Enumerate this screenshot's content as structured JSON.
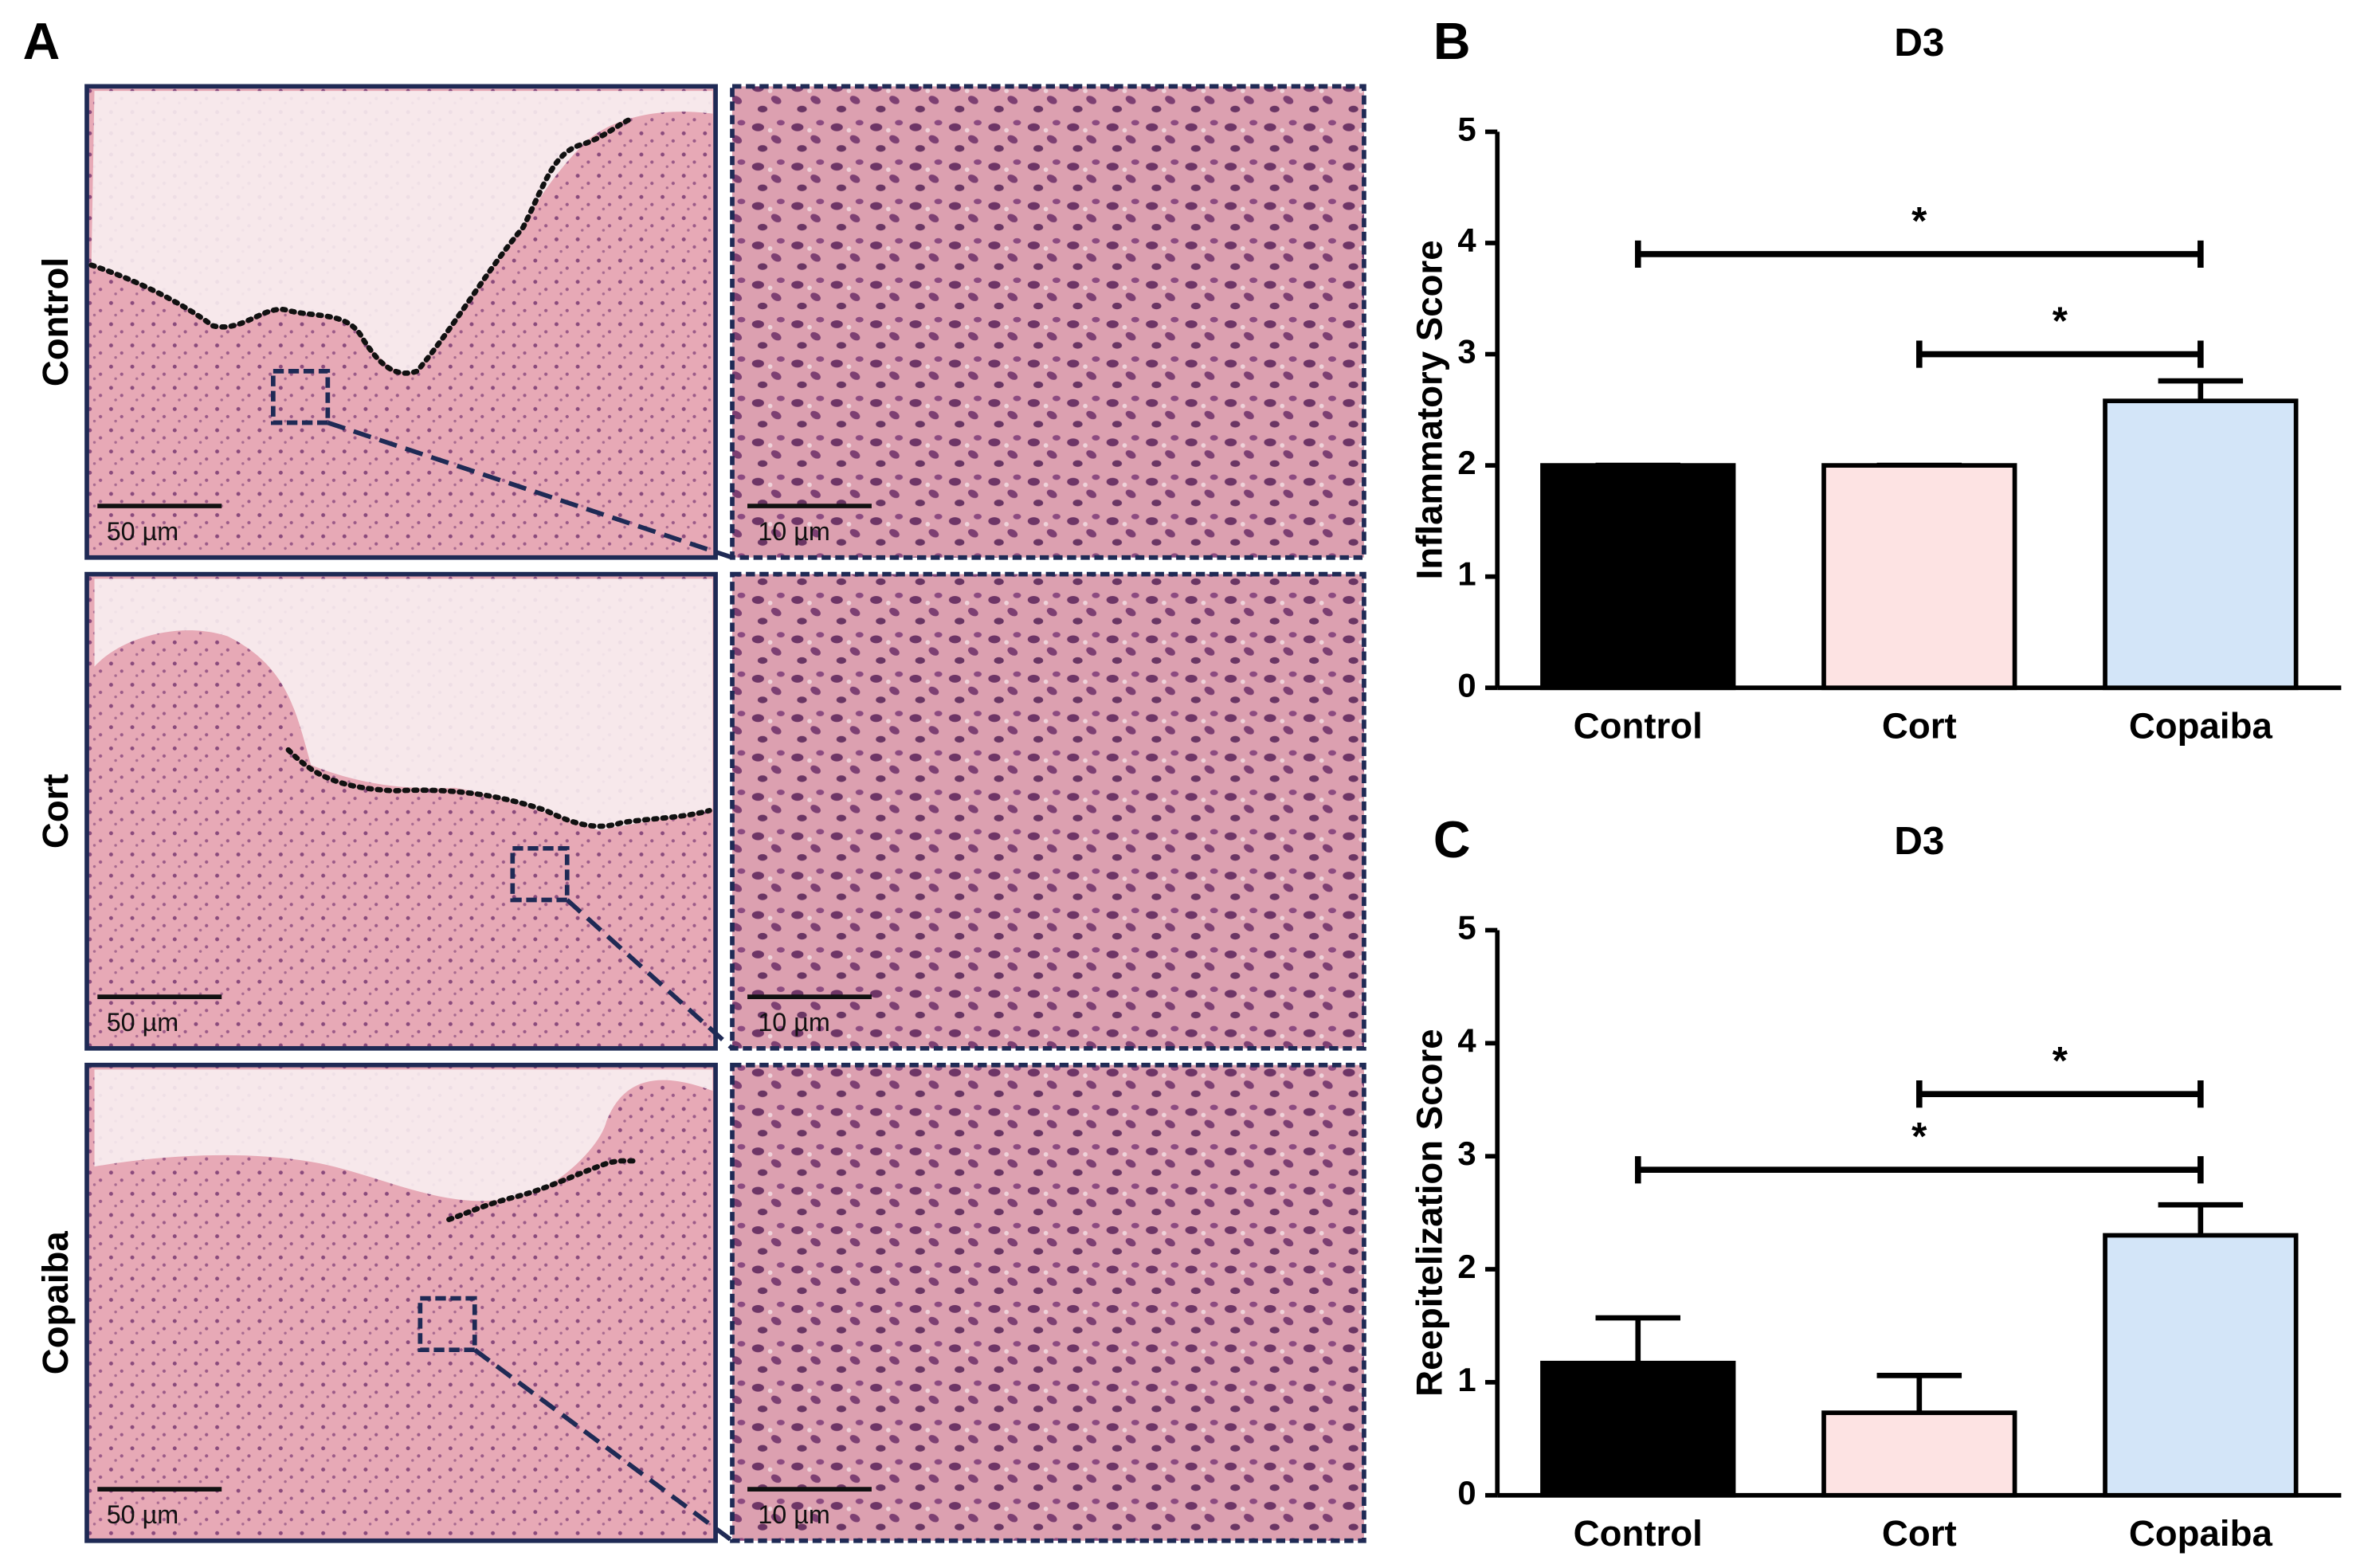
{
  "panel_a": {
    "label": "A",
    "rows": [
      {
        "label": "Control",
        "scale_left": "50 µm",
        "scale_right": "10 µm"
      },
      {
        "label": "Cort",
        "scale_left": "50 µm",
        "scale_right": "10 µm"
      },
      {
        "label": "Copaiba",
        "scale_left": "50 µm",
        "scale_right": "10 µm"
      }
    ]
  },
  "chart_data": [
    {
      "type": "bar",
      "panel_label": "B",
      "title": "D3",
      "y_label": "Inflammatory Score",
      "categories": [
        "Control",
        "Cort",
        "Copaiba"
      ],
      "values": [
        2,
        2,
        2.58
      ],
      "errors": [
        0,
        0,
        0.18
      ],
      "colors": [
        "#000000",
        "#fde3e3",
        "#d3e5f8"
      ],
      "ylim": [
        0,
        5
      ],
      "yticks": [
        0,
        1,
        2,
        3,
        4,
        5
      ],
      "significance": [
        {
          "label": "*",
          "from": "Control",
          "to": "Copaiba",
          "y": 3.9
        },
        {
          "label": "*",
          "from": "Cort",
          "to": "Copaiba",
          "y": 3.0
        }
      ]
    },
    {
      "type": "bar",
      "panel_label": "C",
      "title": "D3",
      "y_label": "Reepitelization Score",
      "categories": [
        "Control",
        "Cort",
        "Copaiba"
      ],
      "values": [
        1.17,
        0.73,
        2.3
      ],
      "errors": [
        0.4,
        0.33,
        0.27
      ],
      "colors": [
        "#000000",
        "#fde3e3",
        "#d3e5f8"
      ],
      "ylim": [
        0,
        5
      ],
      "yticks": [
        0,
        1,
        2,
        3,
        4,
        5
      ],
      "significance": [
        {
          "label": "*",
          "from": "Cort",
          "to": "Copaiba",
          "y": 3.55
        },
        {
          "label": "*",
          "from": "Control",
          "to": "Copaiba",
          "y": 2.88
        }
      ]
    }
  ]
}
